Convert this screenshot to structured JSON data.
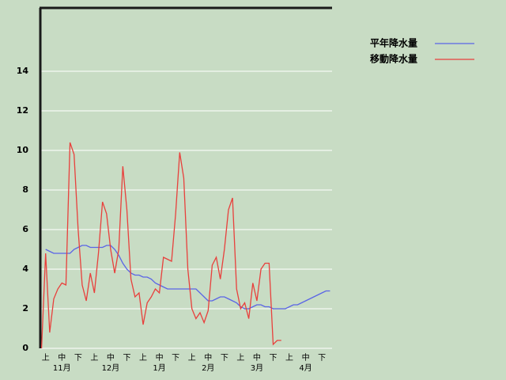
{
  "chart_data": {
    "type": "line",
    "categories": [
      null,
      "上",
      null,
      null,
      null,
      "中",
      null,
      null,
      null,
      "下",
      null,
      null,
      null,
      "上",
      null,
      null,
      null,
      "中",
      null,
      null,
      null,
      "下",
      null,
      null,
      null,
      "上",
      null,
      null,
      null,
      "中",
      null,
      null,
      null,
      "下",
      null,
      null,
      null,
      "上",
      null,
      null,
      null,
      "中",
      null,
      null,
      null,
      "下",
      null,
      null,
      null,
      "上",
      null,
      null,
      null,
      "中",
      null,
      null,
      null,
      "下",
      null,
      null,
      null,
      "上",
      null,
      null,
      null,
      "中",
      null,
      null,
      null,
      "下",
      null,
      null
    ],
    "months": [
      null,
      null,
      null,
      null,
      null,
      "11月",
      null,
      null,
      null,
      null,
      null,
      null,
      null,
      null,
      null,
      null,
      null,
      "12月",
      null,
      null,
      null,
      null,
      null,
      null,
      null,
      null,
      null,
      null,
      null,
      "1月",
      null,
      null,
      null,
      null,
      null,
      null,
      null,
      null,
      null,
      null,
      null,
      "2月",
      null,
      null,
      null,
      null,
      null,
      null,
      null,
      null,
      null,
      null,
      null,
      "3月",
      null,
      null,
      null,
      null,
      null,
      null,
      null,
      null,
      null,
      null,
      null,
      "4月",
      null,
      null,
      null,
      null,
      null,
      null
    ],
    "series": [
      {
        "name": "平年降水量",
        "color": "#5a64e6",
        "values": [
          null,
          5.0,
          4.9,
          4.8,
          4.8,
          4.8,
          4.8,
          4.8,
          5.0,
          5.1,
          5.2,
          5.2,
          5.1,
          5.1,
          5.1,
          5.1,
          5.2,
          5.2,
          5.0,
          4.7,
          4.3,
          4.0,
          3.8,
          3.7,
          3.7,
          3.6,
          3.6,
          3.5,
          3.3,
          3.2,
          3.1,
          3.0,
          3.0,
          3.0,
          3.0,
          3.0,
          3.0,
          3.0,
          3.0,
          2.8,
          2.6,
          2.4,
          2.4,
          2.5,
          2.6,
          2.6,
          2.5,
          2.4,
          2.3,
          2.1,
          2.0,
          2.0,
          2.1,
          2.2,
          2.2,
          2.1,
          2.1,
          2.0,
          2.0,
          2.0,
          2.0,
          2.1,
          2.2,
          2.2,
          2.3,
          2.4,
          2.5,
          2.6,
          2.7,
          2.8,
          2.9,
          2.9
        ]
      },
      {
        "name": "移動降水量",
        "color": "#e8403c",
        "values": [
          0,
          4.8,
          0.8,
          2.5,
          3.0,
          3.3,
          3.2,
          10.4,
          9.8,
          6.0,
          3.2,
          2.4,
          3.8,
          2.8,
          4.8,
          7.4,
          6.8,
          5.0,
          3.8,
          5.0,
          9.2,
          7.0,
          3.5,
          2.6,
          2.8,
          1.2,
          2.3,
          2.6,
          3.0,
          2.8,
          4.6,
          4.5,
          4.4,
          6.8,
          9.9,
          8.6,
          4.0,
          2.0,
          1.5,
          1.8,
          1.3,
          1.9,
          4.2,
          4.6,
          3.5,
          5.0,
          7.0,
          7.6,
          3.0,
          2.0,
          2.3,
          1.5,
          3.3,
          2.4,
          4.0,
          4.3,
          4.3,
          0.2,
          0.4,
          0.4,
          null,
          null,
          null,
          null,
          null,
          null,
          null,
          null,
          null,
          null,
          null,
          null
        ]
      }
    ],
    "ylim": [
      0,
      17.2
    ],
    "yticks": [
      0,
      2,
      4,
      6,
      8,
      10,
      12,
      14
    ],
    "grid": true,
    "legend": "top-right"
  }
}
